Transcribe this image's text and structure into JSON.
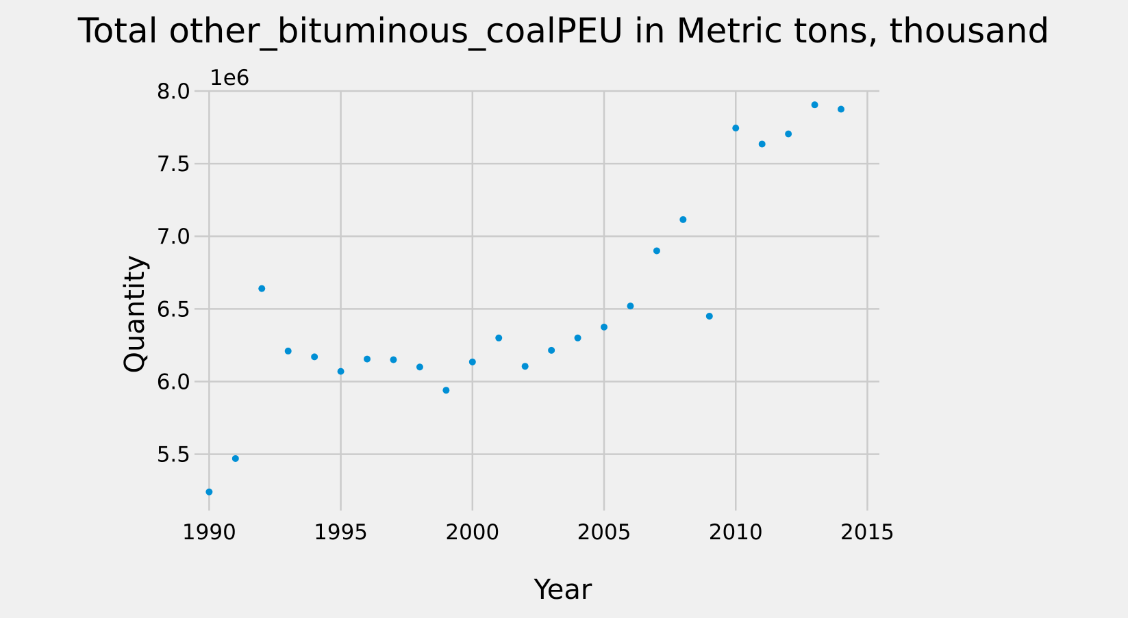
{
  "chart_data": {
    "type": "scatter",
    "title": "Total other_bituminous_coalPEU in Metric tons,  thousand",
    "xlabel": "Year",
    "ylabel": "Quantity",
    "y_offset_label": "1e6",
    "xlim": [
      1989.6,
      2015.3
    ],
    "ylim": [
      5.14,
      8.0
    ],
    "x_ticks": [
      1990,
      1995,
      2000,
      2005,
      2010,
      2015
    ],
    "x_tick_labels": [
      "1990",
      "1995",
      "2000",
      "2005",
      "2010",
      "2015"
    ],
    "y_ticks": [
      5.5,
      6.0,
      6.5,
      7.0,
      7.5,
      8.0
    ],
    "y_tick_labels": [
      "5.5",
      "6.0",
      "6.5",
      "7.0",
      "7.5",
      "8.0"
    ],
    "grid": true,
    "marker_color": "#008fd5",
    "background_color": "#f0f0f0",
    "grid_color": "#cbcbcb",
    "points": [
      {
        "x": 1990,
        "y": 5.24
      },
      {
        "x": 1991,
        "y": 5.47
      },
      {
        "x": 1992,
        "y": 6.64
      },
      {
        "x": 1993,
        "y": 6.21
      },
      {
        "x": 1994,
        "y": 6.17
      },
      {
        "x": 1995,
        "y": 6.07
      },
      {
        "x": 1996,
        "y": 6.155
      },
      {
        "x": 1997,
        "y": 6.15
      },
      {
        "x": 1998,
        "y": 6.1
      },
      {
        "x": 1999,
        "y": 5.94
      },
      {
        "x": 2000,
        "y": 6.135
      },
      {
        "x": 2001,
        "y": 6.3
      },
      {
        "x": 2002,
        "y": 6.105
      },
      {
        "x": 2003,
        "y": 6.215
      },
      {
        "x": 2004,
        "y": 6.3
      },
      {
        "x": 2005,
        "y": 6.375
      },
      {
        "x": 2006,
        "y": 6.52
      },
      {
        "x": 2007,
        "y": 6.9
      },
      {
        "x": 2008,
        "y": 7.115
      },
      {
        "x": 2009,
        "y": 6.45
      },
      {
        "x": 2010,
        "y": 7.745
      },
      {
        "x": 2011,
        "y": 7.635
      },
      {
        "x": 2012,
        "y": 7.705
      },
      {
        "x": 2013,
        "y": 7.905
      },
      {
        "x": 2014,
        "y": 7.875
      }
    ]
  }
}
